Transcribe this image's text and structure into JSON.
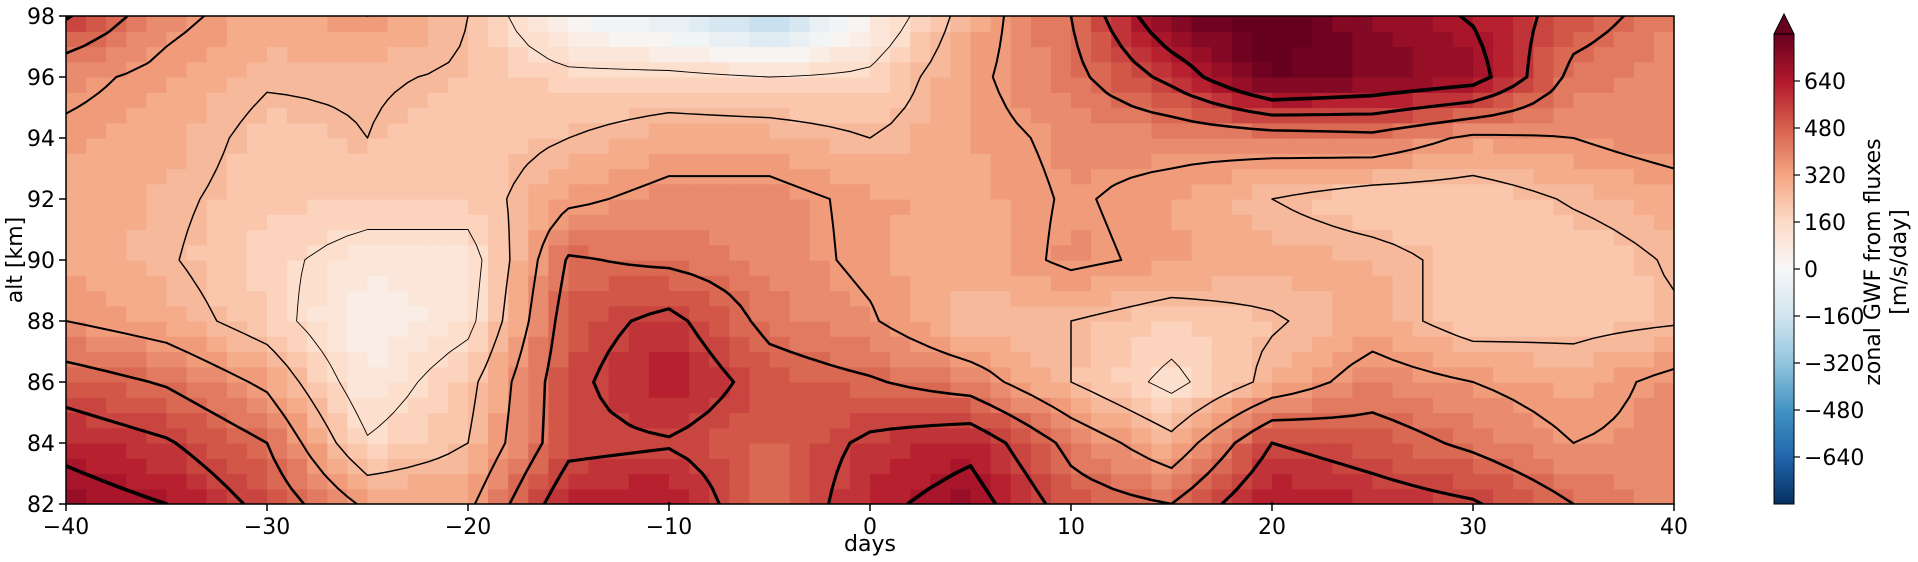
{
  "chart_data": {
    "type": "heatmap",
    "xlabel": "days",
    "ylabel": "alt [km]",
    "xlim": [
      -40,
      40
    ],
    "ylim": [
      82,
      98
    ],
    "xticks": [
      -40,
      -30,
      -20,
      -10,
      0,
      10,
      20,
      30,
      40
    ],
    "xtick_labels": [
      "−40",
      "−30",
      "−20",
      "−10",
      "0",
      "10",
      "20",
      "30",
      "40"
    ],
    "yticks": [
      82,
      84,
      86,
      88,
      90,
      92,
      94,
      96,
      98
    ],
    "ytick_labels": [
      "82",
      "84",
      "86",
      "88",
      "90",
      "92",
      "94",
      "96",
      "98"
    ],
    "colorbar": {
      "label_line1": "zonal GWF from fluxes",
      "label_line2": "[m/s/day]",
      "range": [
        -800,
        800
      ],
      "ticks": [
        -640,
        -480,
        -320,
        -160,
        0,
        160,
        320,
        480,
        640
      ],
      "tick_labels": [
        "−640",
        "−480",
        "−320",
        "−160",
        "0",
        "160",
        "320",
        "480",
        "640"
      ],
      "extend": "max",
      "colormap": "RdBu_r"
    },
    "x": [
      -40,
      -35,
      -30,
      -25,
      -20,
      -15,
      -10,
      -5,
      0,
      5,
      10,
      15,
      20,
      25,
      30,
      35,
      40
    ],
    "y": [
      82,
      84,
      86,
      88,
      90,
      92,
      94,
      96,
      98
    ],
    "z": [
      [
        700,
        650,
        520,
        330,
        330,
        620,
        650,
        450,
        620,
        700,
        500,
        450,
        650,
        600,
        560,
        450,
        380
      ],
      [
        620,
        560,
        450,
        160,
        250,
        520,
        540,
        470,
        570,
        620,
        420,
        280,
        550,
        500,
        430,
        350,
        380
      ],
      [
        500,
        440,
        330,
        80,
        220,
        520,
        640,
        500,
        460,
        400,
        250,
        120,
        280,
        400,
        350,
        300,
        380
      ],
      [
        350,
        300,
        200,
        30,
        120,
        500,
        580,
        420,
        360,
        250,
        250,
        200,
        240,
        300,
        200,
        220,
        240
      ],
      [
        320,
        260,
        180,
        100,
        100,
        460,
        430,
        390,
        330,
        290,
        370,
        330,
        300,
        280,
        220,
        200,
        260
      ],
      [
        310,
        270,
        210,
        200,
        200,
        330,
        380,
        380,
        330,
        300,
        360,
        320,
        250,
        200,
        200,
        260,
        300
      ],
      [
        330,
        300,
        220,
        250,
        200,
        250,
        300,
        300,
        250,
        320,
        370,
        380,
        400,
        420,
        330,
        350,
        400
      ],
      [
        380,
        320,
        260,
        260,
        240,
        180,
        180,
        150,
        170,
        330,
        420,
        580,
        800,
        750,
        700,
        420,
        370
      ],
      [
        560,
        380,
        300,
        350,
        250,
        0,
        -100,
        -250,
        50,
        300,
        450,
        750,
        850,
        720,
        640,
        500,
        400
      ]
    ],
    "line_levels": [
      150,
      250,
      350,
      450,
      550,
      650
    ]
  }
}
